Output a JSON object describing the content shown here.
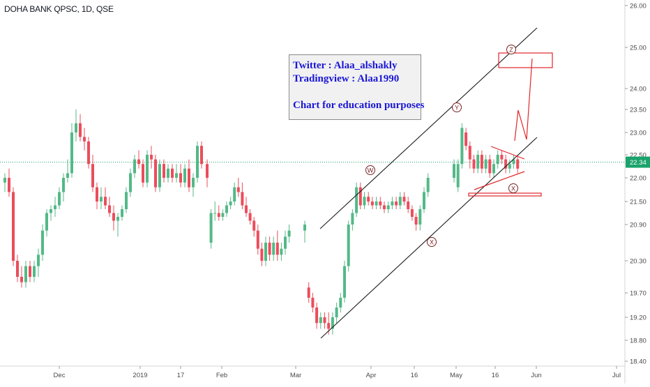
{
  "header": {
    "symbol_title": "DOHA BANK QPSC, 1D, QSE"
  },
  "note": {
    "line1": "Twitter : Alaa_alshakly",
    "line2": "Tradingview : Alaa1990",
    "line3": "Chart for education purposes"
  },
  "colors": {
    "up": "#53b987",
    "down": "#eb4d5c",
    "annotation": "#e0262b",
    "channel": "#1b1b1b",
    "note_text": "#1a16d6",
    "price_line": "#1aa36b"
  },
  "chart_data": {
    "type": "candlestick",
    "title": "DOHA BANK QPSC, 1D, QSE",
    "interval": "1D",
    "ylim": [
      18.4,
      26.1
    ],
    "y_ticks": [
      "26.00",
      "25.00",
      "24.00",
      "23.50",
      "23.00",
      "22.50",
      "22.00",
      "21.50",
      "20.90",
      "20.30",
      "19.70",
      "19.20",
      "18.80",
      "18.40"
    ],
    "x_ticks": [
      "Dec",
      "2019",
      "17",
      "Feb",
      "Mar",
      "Apr",
      "16",
      "May",
      "16",
      "Jun",
      "Jul"
    ],
    "last_price": "22.34",
    "grid": false,
    "candles": [
      {
        "o": 21.9,
        "h": 22.1,
        "l": 21.7,
        "c": 22.0
      },
      {
        "o": 22.0,
        "h": 22.2,
        "l": 21.6,
        "c": 21.7
      },
      {
        "o": 21.7,
        "h": 21.8,
        "l": 20.2,
        "c": 20.3
      },
      {
        "o": 20.3,
        "h": 20.4,
        "l": 19.9,
        "c": 20.0
      },
      {
        "o": 20.0,
        "h": 20.2,
        "l": 19.8,
        "c": 19.9
      },
      {
        "o": 19.9,
        "h": 20.3,
        "l": 19.8,
        "c": 20.2
      },
      {
        "o": 20.2,
        "h": 20.3,
        "l": 19.9,
        "c": 20.0
      },
      {
        "o": 20.0,
        "h": 20.3,
        "l": 19.9,
        "c": 20.2
      },
      {
        "o": 20.2,
        "h": 20.5,
        "l": 20.0,
        "c": 20.4
      },
      {
        "o": 20.4,
        "h": 20.9,
        "l": 20.3,
        "c": 20.8
      },
      {
        "o": 20.8,
        "h": 21.3,
        "l": 20.7,
        "c": 21.2
      },
      {
        "o": 21.2,
        "h": 21.4,
        "l": 21.0,
        "c": 21.3
      },
      {
        "o": 21.3,
        "h": 21.6,
        "l": 21.1,
        "c": 21.4
      },
      {
        "o": 21.4,
        "h": 21.8,
        "l": 21.3,
        "c": 21.7
      },
      {
        "o": 21.7,
        "h": 22.1,
        "l": 21.5,
        "c": 22.0
      },
      {
        "o": 22.0,
        "h": 22.4,
        "l": 21.9,
        "c": 22.1
      },
      {
        "o": 22.1,
        "h": 23.2,
        "l": 22.0,
        "c": 23.0
      },
      {
        "o": 23.0,
        "h": 23.5,
        "l": 22.8,
        "c": 23.2
      },
      {
        "o": 23.2,
        "h": 23.4,
        "l": 22.8,
        "c": 22.9
      },
      {
        "o": 22.9,
        "h": 23.1,
        "l": 22.6,
        "c": 22.8
      },
      {
        "o": 22.8,
        "h": 22.9,
        "l": 22.2,
        "c": 22.3
      },
      {
        "o": 22.3,
        "h": 22.5,
        "l": 21.7,
        "c": 21.8
      },
      {
        "o": 21.8,
        "h": 21.9,
        "l": 21.3,
        "c": 21.5
      },
      {
        "o": 21.5,
        "h": 21.8,
        "l": 21.3,
        "c": 21.6
      },
      {
        "o": 21.6,
        "h": 21.8,
        "l": 21.3,
        "c": 21.4
      },
      {
        "o": 21.4,
        "h": 21.6,
        "l": 21.1,
        "c": 21.2
      },
      {
        "o": 21.2,
        "h": 21.4,
        "l": 20.8,
        "c": 21.0
      },
      {
        "o": 21.0,
        "h": 21.2,
        "l": 20.7,
        "c": 21.1
      },
      {
        "o": 21.1,
        "h": 21.4,
        "l": 21.0,
        "c": 21.3
      },
      {
        "o": 21.3,
        "h": 21.8,
        "l": 21.2,
        "c": 21.7
      },
      {
        "o": 21.7,
        "h": 22.2,
        "l": 21.6,
        "c": 22.1
      },
      {
        "o": 22.1,
        "h": 22.5,
        "l": 22.0,
        "c": 22.4
      },
      {
        "o": 22.4,
        "h": 22.6,
        "l": 22.2,
        "c": 22.3
      },
      {
        "o": 22.3,
        "h": 22.4,
        "l": 21.8,
        "c": 21.9
      },
      {
        "o": 21.9,
        "h": 22.6,
        "l": 21.8,
        "c": 22.5
      },
      {
        "o": 22.5,
        "h": 22.7,
        "l": 22.2,
        "c": 22.4
      },
      {
        "o": 22.4,
        "h": 22.5,
        "l": 21.7,
        "c": 21.8
      },
      {
        "o": 21.8,
        "h": 22.4,
        "l": 21.7,
        "c": 22.3
      },
      {
        "o": 22.3,
        "h": 22.4,
        "l": 21.9,
        "c": 22.0
      },
      {
        "o": 22.0,
        "h": 22.3,
        "l": 21.9,
        "c": 22.2
      },
      {
        "o": 22.2,
        "h": 22.3,
        "l": 21.9,
        "c": 22.0
      },
      {
        "o": 22.0,
        "h": 22.3,
        "l": 21.9,
        "c": 22.1
      },
      {
        "o": 22.1,
        "h": 22.3,
        "l": 21.8,
        "c": 21.9
      },
      {
        "o": 21.9,
        "h": 22.3,
        "l": 21.8,
        "c": 22.2
      },
      {
        "o": 22.2,
        "h": 22.4,
        "l": 21.7,
        "c": 21.8
      },
      {
        "o": 21.8,
        "h": 22.1,
        "l": 21.6,
        "c": 22.0
      },
      {
        "o": 22.0,
        "h": 22.8,
        "l": 21.9,
        "c": 22.7
      },
      {
        "o": 22.7,
        "h": 22.8,
        "l": 22.2,
        "c": 22.3
      },
      {
        "o": 22.3,
        "h": 22.4,
        "l": 21.8,
        "c": 22.0
      },
      {
        "o": 20.6,
        "h": 21.3,
        "l": 20.5,
        "c": 21.2
      },
      {
        "o": 21.2,
        "h": 21.5,
        "l": 21.0,
        "c": 21.2
      },
      {
        "o": 21.2,
        "h": 21.4,
        "l": 21.0,
        "c": 21.1
      },
      {
        "o": 21.1,
        "h": 21.3,
        "l": 21.0,
        "c": 21.2
      },
      {
        "o": 21.2,
        "h": 21.5,
        "l": 21.1,
        "c": 21.4
      },
      {
        "o": 21.4,
        "h": 21.6,
        "l": 21.3,
        "c": 21.5
      },
      {
        "o": 21.5,
        "h": 21.9,
        "l": 21.4,
        "c": 21.8
      },
      {
        "o": 21.8,
        "h": 22.0,
        "l": 21.6,
        "c": 21.7
      },
      {
        "o": 21.7,
        "h": 21.9,
        "l": 21.3,
        "c": 21.4
      },
      {
        "o": 21.4,
        "h": 21.6,
        "l": 21.1,
        "c": 21.2
      },
      {
        "o": 21.2,
        "h": 21.3,
        "l": 20.9,
        "c": 21.0
      },
      {
        "o": 21.0,
        "h": 21.1,
        "l": 20.7,
        "c": 20.8
      },
      {
        "o": 20.8,
        "h": 20.9,
        "l": 20.4,
        "c": 20.5
      },
      {
        "o": 20.5,
        "h": 20.6,
        "l": 20.2,
        "c": 20.3
      },
      {
        "o": 20.3,
        "h": 20.7,
        "l": 20.2,
        "c": 20.6
      },
      {
        "o": 20.6,
        "h": 20.7,
        "l": 20.3,
        "c": 20.4
      },
      {
        "o": 20.4,
        "h": 20.7,
        "l": 20.3,
        "c": 20.6
      },
      {
        "o": 20.6,
        "h": 20.8,
        "l": 20.3,
        "c": 20.4
      },
      {
        "o": 20.4,
        "h": 20.6,
        "l": 20.3,
        "c": 20.5
      },
      {
        "o": 20.5,
        "h": 20.8,
        "l": 20.4,
        "c": 20.7
      },
      {
        "o": 20.7,
        "h": 20.9,
        "l": 20.6,
        "c": 20.8
      },
      {
        "o": 20.8,
        "h": 21.0,
        "l": 20.6,
        "c": 20.9
      },
      {
        "o": 19.8,
        "h": 19.9,
        "l": 19.5,
        "c": 19.6
      },
      {
        "o": 19.6,
        "h": 19.7,
        "l": 19.3,
        "c": 19.4
      },
      {
        "o": 19.4,
        "h": 19.5,
        "l": 19.0,
        "c": 19.1
      },
      {
        "o": 19.1,
        "h": 19.3,
        "l": 19.0,
        "c": 19.2
      },
      {
        "o": 19.2,
        "h": 19.3,
        "l": 19.0,
        "c": 19.1
      },
      {
        "o": 19.1,
        "h": 19.3,
        "l": 18.9,
        "c": 19.0
      },
      {
        "o": 19.0,
        "h": 19.3,
        "l": 18.9,
        "c": 19.2
      },
      {
        "o": 19.2,
        "h": 19.5,
        "l": 19.1,
        "c": 19.4
      },
      {
        "o": 19.4,
        "h": 19.7,
        "l": 19.3,
        "c": 19.6
      },
      {
        "o": 19.6,
        "h": 20.3,
        "l": 19.5,
        "c": 20.2
      },
      {
        "o": 20.2,
        "h": 21.0,
        "l": 20.1,
        "c": 20.9
      },
      {
        "o": 20.9,
        "h": 21.3,
        "l": 20.8,
        "c": 21.2
      },
      {
        "o": 21.2,
        "h": 21.9,
        "l": 21.1,
        "c": 21.8
      },
      {
        "o": 21.8,
        "h": 21.9,
        "l": 21.3,
        "c": 21.4
      },
      {
        "o": 21.4,
        "h": 21.7,
        "l": 21.3,
        "c": 21.6
      },
      {
        "o": 21.6,
        "h": 21.7,
        "l": 21.4,
        "c": 21.5
      },
      {
        "o": 21.5,
        "h": 21.6,
        "l": 21.3,
        "c": 21.4
      },
      {
        "o": 21.4,
        "h": 21.6,
        "l": 21.3,
        "c": 21.5
      },
      {
        "o": 21.5,
        "h": 21.6,
        "l": 21.3,
        "c": 21.4
      },
      {
        "o": 21.4,
        "h": 21.5,
        "l": 21.2,
        "c": 21.3
      },
      {
        "o": 21.3,
        "h": 21.5,
        "l": 21.2,
        "c": 21.4
      },
      {
        "o": 21.4,
        "h": 21.6,
        "l": 21.3,
        "c": 21.5
      },
      {
        "o": 21.5,
        "h": 21.6,
        "l": 21.3,
        "c": 21.4
      },
      {
        "o": 21.4,
        "h": 21.7,
        "l": 21.3,
        "c": 21.6
      },
      {
        "o": 21.6,
        "h": 21.7,
        "l": 21.4,
        "c": 21.5
      },
      {
        "o": 21.5,
        "h": 21.6,
        "l": 21.2,
        "c": 21.3
      },
      {
        "o": 21.3,
        "h": 21.4,
        "l": 21.0,
        "c": 21.1
      },
      {
        "o": 21.1,
        "h": 21.2,
        "l": 20.8,
        "c": 20.9
      },
      {
        "o": 20.9,
        "h": 21.4,
        "l": 20.8,
        "c": 21.3
      },
      {
        "o": 21.3,
        "h": 21.8,
        "l": 21.2,
        "c": 21.7
      },
      {
        "o": 21.7,
        "h": 22.1,
        "l": 21.6,
        "c": 22.0
      },
      {
        "o": 22.0,
        "h": 22.4,
        "l": 21.9,
        "c": 22.3
      },
      {
        "o": 21.8,
        "h": 22.4,
        "l": 21.7,
        "c": 22.3
      },
      {
        "o": 22.3,
        "h": 23.2,
        "l": 22.2,
        "c": 23.1
      },
      {
        "o": 23.0,
        "h": 23.1,
        "l": 22.6,
        "c": 22.7
      },
      {
        "o": 22.7,
        "h": 22.8,
        "l": 22.2,
        "c": 22.4
      },
      {
        "o": 22.4,
        "h": 22.5,
        "l": 22.1,
        "c": 22.2
      },
      {
        "o": 22.2,
        "h": 22.6,
        "l": 22.1,
        "c": 22.5
      },
      {
        "o": 22.5,
        "h": 22.6,
        "l": 22.1,
        "c": 22.2
      },
      {
        "o": 22.2,
        "h": 22.5,
        "l": 22.1,
        "c": 22.4
      },
      {
        "o": 22.4,
        "h": 22.5,
        "l": 22.0,
        "c": 22.1
      },
      {
        "o": 22.1,
        "h": 22.4,
        "l": 22.0,
        "c": 22.3
      },
      {
        "o": 22.3,
        "h": 22.6,
        "l": 22.2,
        "c": 22.5
      },
      {
        "o": 22.5,
        "h": 22.6,
        "l": 22.3,
        "c": 22.4
      },
      {
        "o": 22.4,
        "h": 22.5,
        "l": 22.1,
        "c": 22.2
      },
      {
        "o": 22.2,
        "h": 22.4,
        "l": 22.1,
        "c": 22.3
      },
      {
        "o": 22.3,
        "h": 22.5,
        "l": 22.2,
        "c": 22.4
      },
      {
        "o": 22.4,
        "h": 22.5,
        "l": 22.1,
        "c": 22.2
      },
      {
        "o": 22.2,
        "h": 22.5,
        "l": 22.1,
        "c": 22.4
      }
    ],
    "wave_labels": [
      "W",
      "X",
      "Y",
      "X",
      "Z"
    ]
  }
}
